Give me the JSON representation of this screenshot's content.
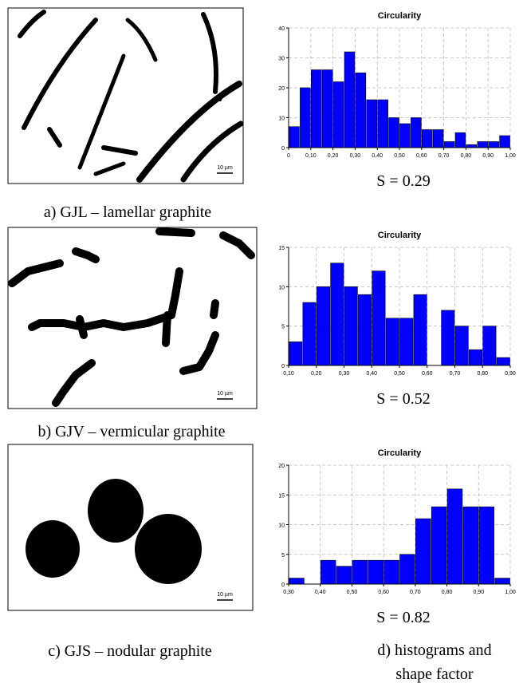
{
  "figure": {
    "panels": [
      {
        "caption": "a) GJL – lamellar graphite",
        "scale_bar": "10 µm"
      },
      {
        "caption": "b) GJV – vermicular graphite",
        "scale_bar": "10 µm"
      },
      {
        "caption": "c) GJS – nodular graphite",
        "scale_bar": "10 µm"
      }
    ],
    "caption_d": "d) histograms and shape factor"
  },
  "chart_data": [
    {
      "type": "histogram",
      "title": "Circularity",
      "annotation": "S = 0.29",
      "color": "#0000ff",
      "grid": true,
      "bins": [
        0,
        0.05,
        0.1,
        0.15,
        0.2,
        0.25,
        0.3,
        0.35,
        0.4,
        0.45,
        0.5,
        0.55,
        0.6,
        0.65,
        0.7,
        0.75,
        0.8,
        0.85,
        0.9,
        0.95,
        1.0
      ],
      "values": [
        7,
        20,
        26,
        26,
        22,
        32,
        25,
        16,
        16,
        10,
        8,
        10,
        6,
        6,
        2,
        5,
        1,
        2,
        2,
        4
      ],
      "xlim": [
        0,
        1.0
      ],
      "ylim": [
        0,
        40
      ],
      "yticks": [
        0,
        10,
        20,
        30,
        40
      ],
      "xticks": [
        0,
        {
          "value": 0.1,
          "label": "0,10"
        },
        {
          "value": 0.2,
          "label": "0,20"
        },
        {
          "value": 0.3,
          "label": "0,30"
        },
        {
          "value": 0.4,
          "label": "0,40"
        },
        {
          "value": 0.5,
          "label": "0,50"
        },
        {
          "value": 0.6,
          "label": "0,60"
        },
        {
          "value": 0.7,
          "label": "0,70"
        },
        {
          "value": 0.8,
          "label": "0,80"
        },
        {
          "value": 0.9,
          "label": "0,90"
        },
        {
          "value": 1.0,
          "label": "1,00"
        }
      ]
    },
    {
      "type": "histogram",
      "title": "Circularity",
      "annotation": "S = 0.52",
      "color": "#0000ff",
      "grid": true,
      "bins": [
        0.1,
        0.15,
        0.2,
        0.25,
        0.3,
        0.35,
        0.4,
        0.45,
        0.5,
        0.55,
        0.6,
        0.65,
        0.7,
        0.75,
        0.8,
        0.85,
        0.9
      ],
      "values": [
        3,
        8,
        10,
        13,
        10,
        9,
        12,
        6,
        6,
        9,
        0,
        7,
        5,
        2,
        5,
        1
      ],
      "xlim": [
        0.1,
        0.9
      ],
      "ylim": [
        0,
        15
      ],
      "yticks": [
        0,
        5,
        10,
        15
      ],
      "xticks": [
        {
          "value": 0.1,
          "label": "0,10"
        },
        {
          "value": 0.2,
          "label": "0,20"
        },
        {
          "value": 0.3,
          "label": "0,30"
        },
        {
          "value": 0.4,
          "label": "0,40"
        },
        {
          "value": 0.5,
          "label": "0,50"
        },
        {
          "value": 0.6,
          "label": "0,60"
        },
        {
          "value": 0.7,
          "label": "0,70"
        },
        {
          "value": 0.8,
          "label": "0,80"
        },
        {
          "value": 0.9,
          "label": "0,90"
        }
      ]
    },
    {
      "type": "histogram",
      "title": "Circularity",
      "annotation": "S = 0.82",
      "color": "#0000ff",
      "grid": true,
      "bins": [
        0.3,
        0.35,
        0.4,
        0.45,
        0.5,
        0.55,
        0.6,
        0.65,
        0.7,
        0.75,
        0.8,
        0.85,
        0.9,
        0.95,
        1.0
      ],
      "values": [
        1,
        0,
        4,
        3,
        4,
        4,
        4,
        5,
        11,
        13,
        16,
        13,
        13,
        1
      ],
      "xlim": [
        0.3,
        1.0
      ],
      "ylim": [
        0,
        20
      ],
      "yticks": [
        0,
        5,
        10,
        15,
        20
      ],
      "xticks": [
        {
          "value": 0.3,
          "label": "0,30"
        },
        {
          "value": 0.4,
          "label": "0,40"
        },
        {
          "value": 0.5,
          "label": "0,50"
        },
        {
          "value": 0.6,
          "label": "0,60"
        },
        {
          "value": 0.7,
          "label": "0,70"
        },
        {
          "value": 0.8,
          "label": "0,80"
        },
        {
          "value": 0.9,
          "label": "0,90"
        },
        {
          "value": 1.0,
          "label": "1,00"
        }
      ]
    }
  ]
}
